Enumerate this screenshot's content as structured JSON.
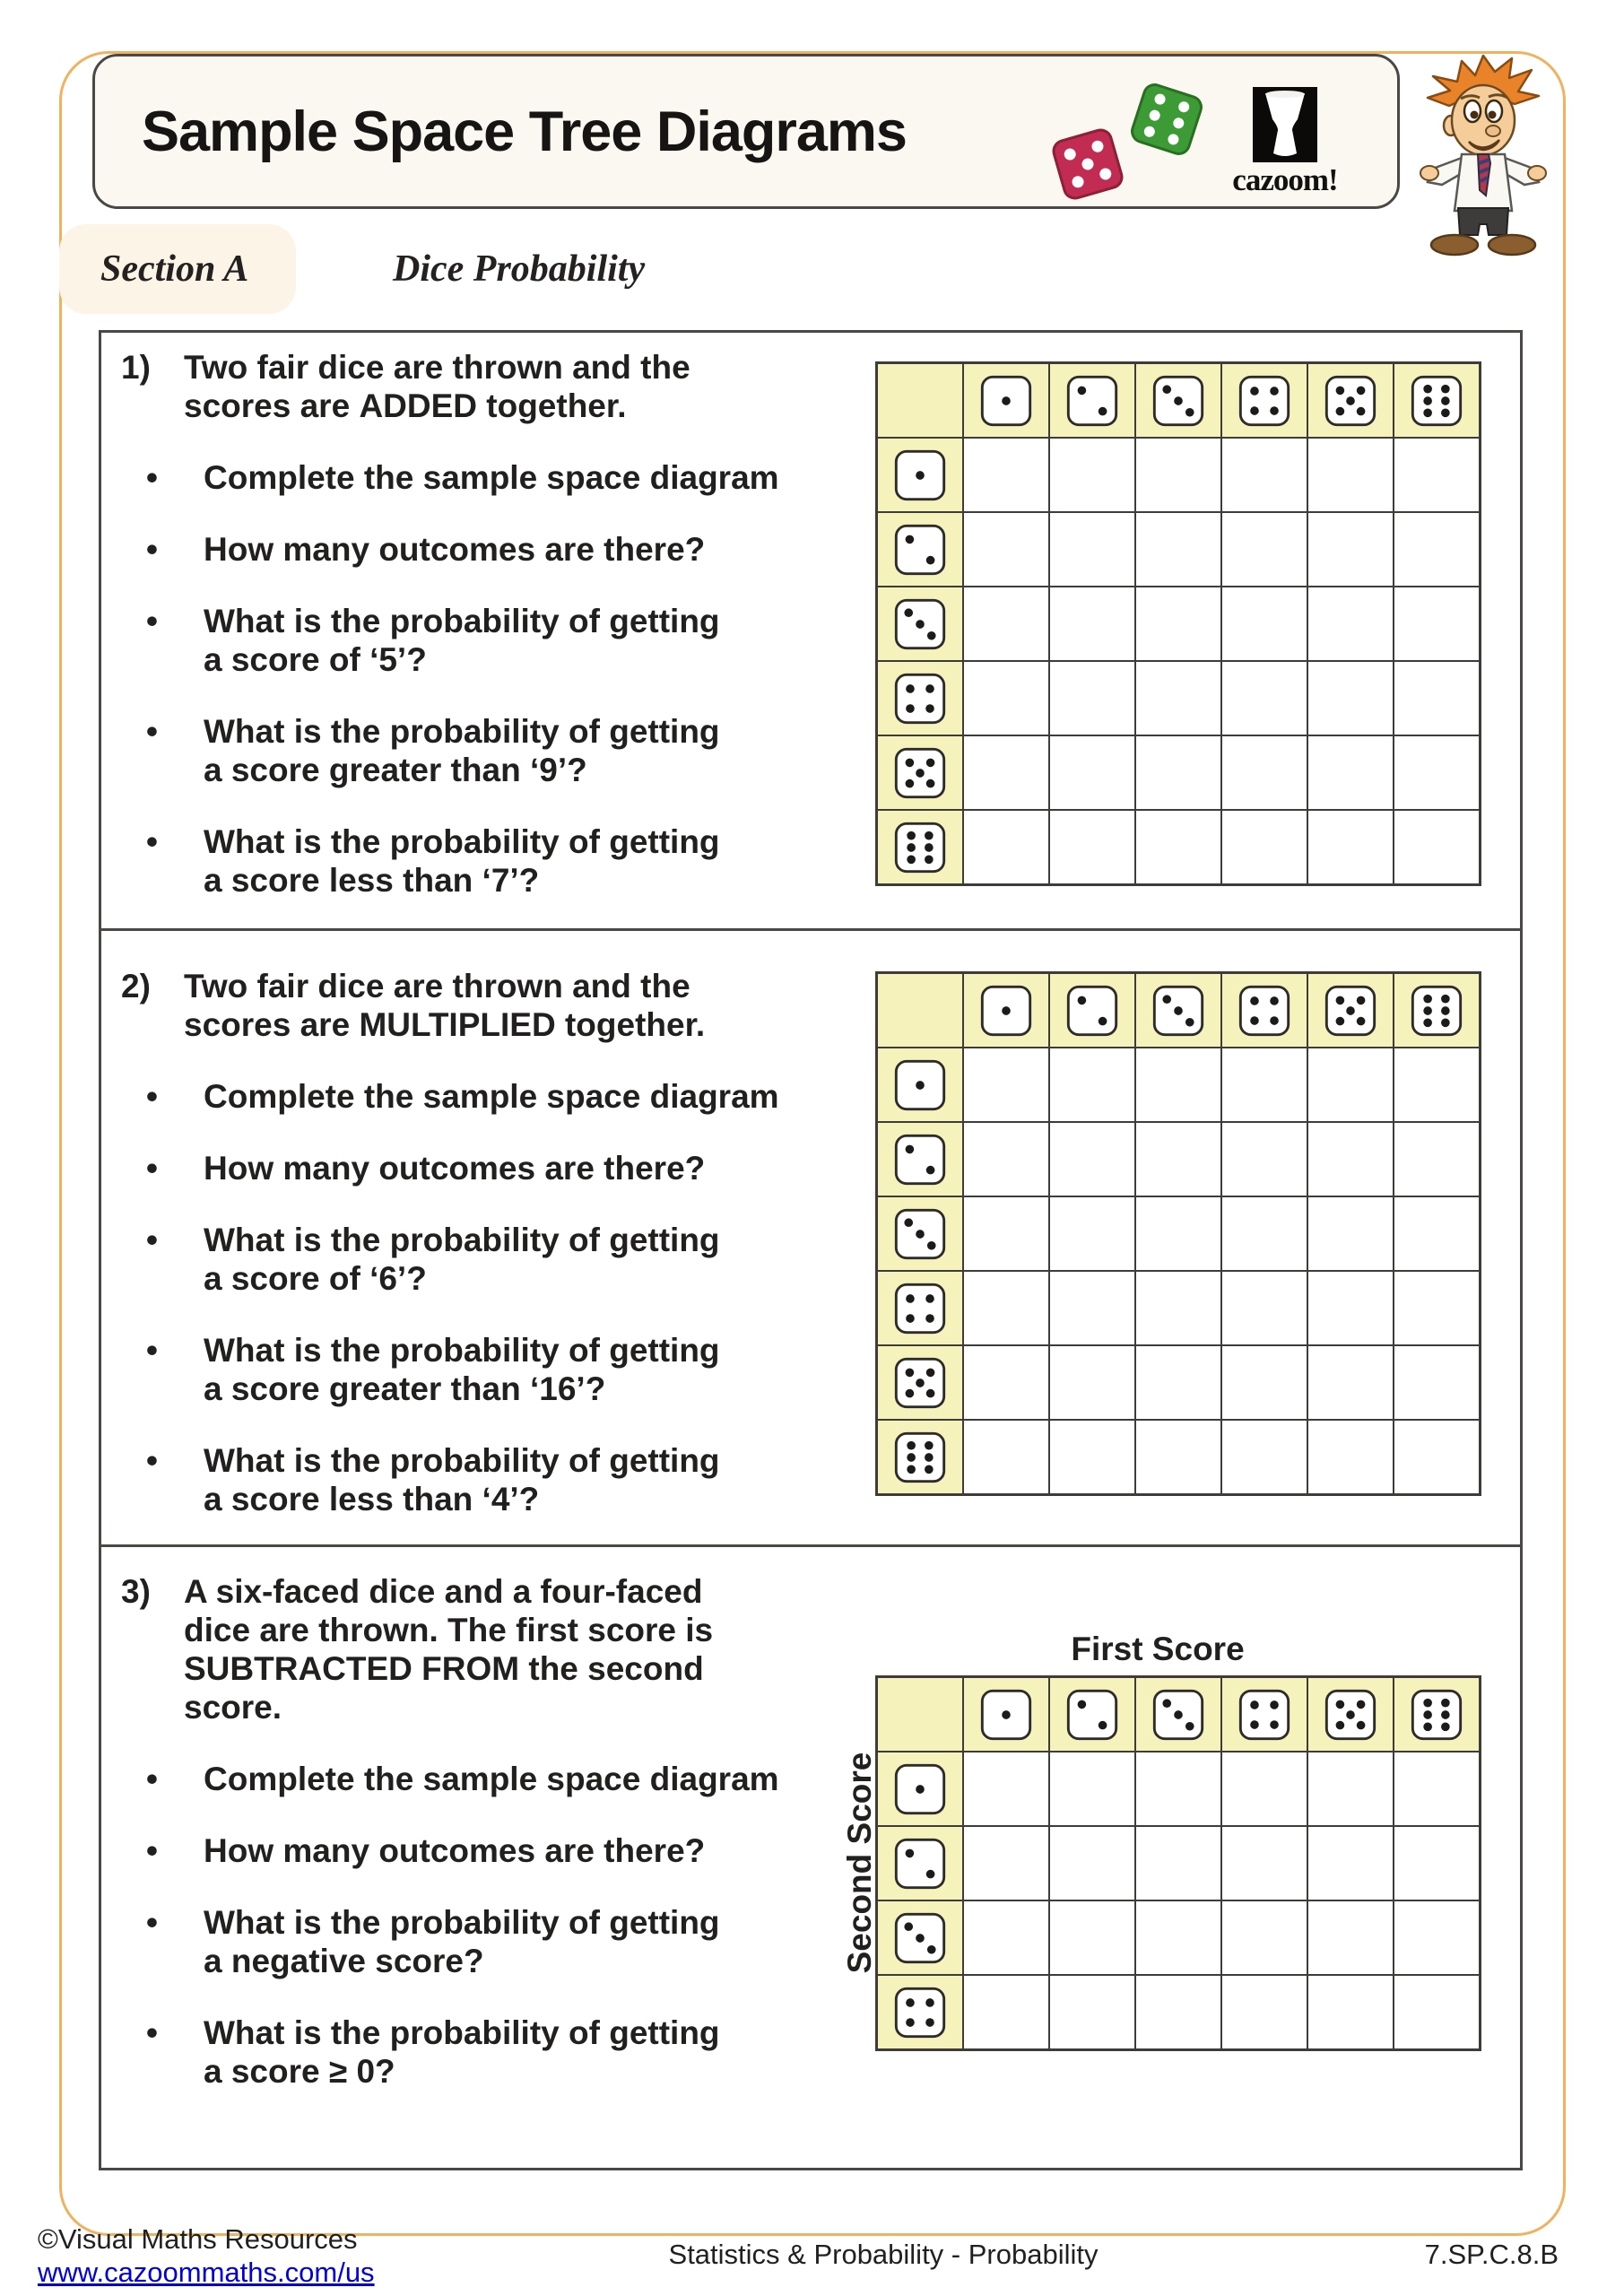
{
  "header": {
    "title": "Sample Space Tree Diagrams",
    "logo_text": "cazoom!"
  },
  "section": {
    "label": "Section A",
    "subtitle": "Dice Probability"
  },
  "questions": [
    {
      "number": "1)",
      "intro": [
        {
          "t": "Two fair dice are thrown and the\nscores are "
        },
        {
          "t": "ADDED",
          "b": true
        },
        {
          "t": " together."
        }
      ],
      "bullets": [
        "Complete the sample space diagram",
        "How many outcomes are there?",
        "What is the probability of getting\na score of ‘5’?",
        "What is the probability of getting\na score greater than ‘9’?",
        "What is the probability of getting\na score less than ‘7’?"
      ]
    },
    {
      "number": "2)",
      "intro": [
        {
          "t": "Two fair dice are thrown and the\nscores are "
        },
        {
          "t": "MULTIPLIED",
          "b": true
        },
        {
          "t": " together."
        }
      ],
      "bullets": [
        "Complete the sample space diagram",
        "How many outcomes are there?",
        "What is the probability of getting\na score of ‘6’?",
        "What is the probability of getting\na score greater than ‘16’?",
        "What is the probability of getting\na score less than ‘4’?"
      ]
    },
    {
      "number": "3)",
      "intro": [
        {
          "t": "A six-faced dice and a four-faced\ndice are thrown. The first score is\n"
        },
        {
          "t": "SUBTRACTED FROM",
          "b": true
        },
        {
          "t": " the second\nscore."
        }
      ],
      "bullets": [
        "Complete the sample space diagram",
        "How many outcomes are there?",
        "What is the probability of getting\na negative score?",
        "What is the probability of getting\na score ≥ 0?"
      ]
    }
  ],
  "grids": [
    {
      "cols": [
        1,
        2,
        3,
        4,
        5,
        6
      ],
      "rows": [
        1,
        2,
        3,
        4,
        5,
        6
      ],
      "top_label": "",
      "left_label": ""
    },
    {
      "cols": [
        1,
        2,
        3,
        4,
        5,
        6
      ],
      "rows": [
        1,
        2,
        3,
        4,
        5,
        6
      ],
      "top_label": "",
      "left_label": ""
    },
    {
      "cols": [
        1,
        2,
        3,
        4,
        5,
        6
      ],
      "rows": [
        1,
        2,
        3,
        4
      ],
      "top_label": "First Score",
      "left_label": "Second Score"
    }
  ],
  "footer": {
    "copyright": "©Visual Maths Resources",
    "url": "www.cazoommaths.com/us",
    "center": "Statistics & Probability - Probability",
    "code": "7.SP.C.8.B"
  },
  "colors": {
    "frame_orange": "#F0B25E",
    "grid_yellow": "#F6F2BB",
    "header_cream": "#FAF8F1",
    "pill_cream": "#FBF4E7",
    "border_gray": "#4a4745",
    "link_blue": "#0000D6",
    "die_red": "#C22B52",
    "die_green": "#3C9B35"
  }
}
